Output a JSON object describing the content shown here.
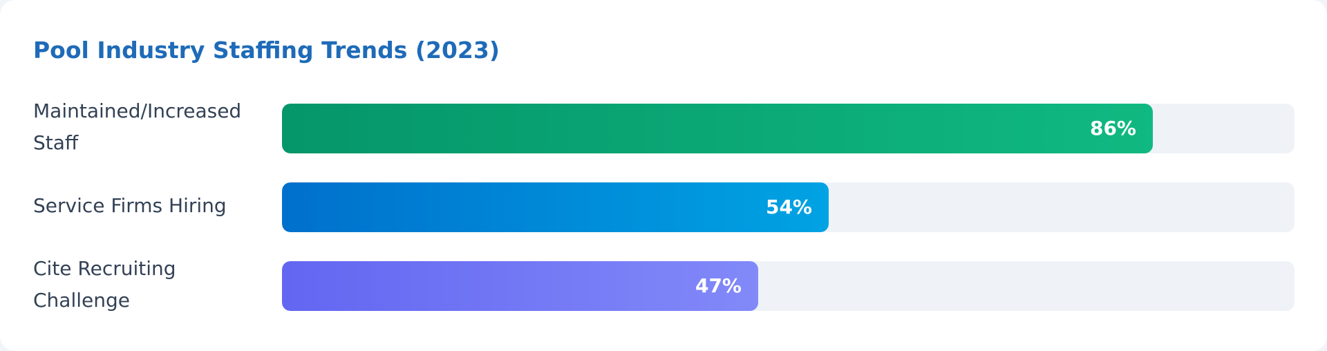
{
  "chart_data": {
    "type": "bar",
    "orientation": "horizontal",
    "title": "Pool Industry Staffing Trends (2023)",
    "categories": [
      "Maintained/Increased Staff",
      "Service Firms Hiring",
      "Cite Recruiting Challenge"
    ],
    "values": [
      86,
      54,
      47
    ],
    "value_labels": [
      "86%",
      "54%",
      "47%"
    ],
    "unit": "%",
    "xlim": [
      0,
      100
    ],
    "grid": false,
    "legend": "none",
    "colors": [
      [
        "#059669",
        "#10b981"
      ],
      [
        "#0070cc",
        "#00a3e3"
      ],
      [
        "#6366f1",
        "#8289f8"
      ]
    ]
  },
  "colors": {
    "title": "#1e6bb8",
    "label": "#334155",
    "track": "#eff3f8",
    "card": "#ffffff"
  }
}
